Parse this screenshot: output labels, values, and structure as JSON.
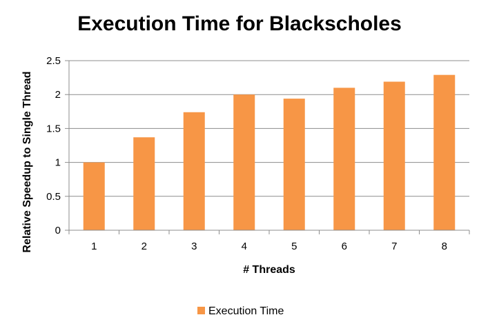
{
  "chart_data": {
    "type": "bar",
    "title": "Execution Time for Blackscholes",
    "xlabel": "# Threads",
    "ylabel": "Relative Speedup to Single Thread",
    "categories": [
      "1",
      "2",
      "3",
      "4",
      "5",
      "6",
      "7",
      "8"
    ],
    "series": [
      {
        "name": "Execution Time",
        "values": [
          1.0,
          1.37,
          1.74,
          2.0,
          1.94,
          2.1,
          2.19,
          2.29
        ],
        "color": "#F79646"
      }
    ],
    "ylim": [
      0,
      2.5
    ],
    "yticks": [
      "0",
      "0.5",
      "1",
      "1.5",
      "2",
      "2.5"
    ],
    "grid": true,
    "legend_position": "bottom"
  }
}
